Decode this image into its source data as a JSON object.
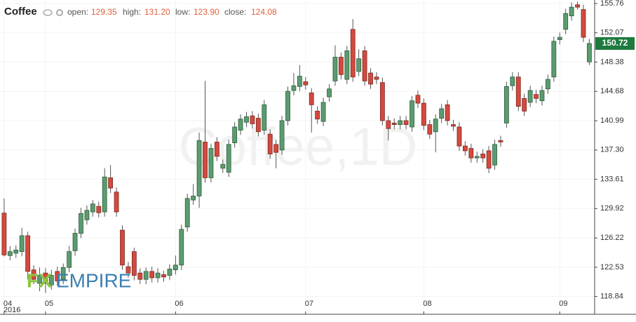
{
  "header": {
    "title": "Coffee",
    "open_label": "open:",
    "open": "129.35",
    "high_label": "high:",
    "high": "131.20",
    "low_label": "low:",
    "low": "123.90",
    "close_label": "close:",
    "close": "124.08"
  },
  "watermark": "Coffee,1D",
  "logo": {
    "fx": "FX",
    "empire": "EMPIRE"
  },
  "chart_data": {
    "type": "candlestick",
    "open": [
      129.35,
      124.0,
      124.3,
      124.5,
      126.5,
      122.2,
      120.5,
      121.8,
      120.3,
      122.0,
      121.0,
      122.5,
      124.6,
      126.8,
      128.5,
      129.5,
      130.2,
      129.5,
      133.8,
      132.0,
      127.2,
      122.6,
      124.5,
      121.8,
      121.0,
      122.0,
      121.2,
      121.6,
      121.5,
      122.2,
      122.8,
      127.6,
      131.0,
      131.5,
      138.3,
      133.8,
      138.3,
      135.0,
      134.5,
      138.2,
      139.8,
      140.8,
      141.6,
      141.3,
      139.8,
      139.3,
      138.0,
      137.3,
      141.0,
      144.8,
      145.3,
      145.9,
      144.5,
      142.2,
      140.9,
      144.0,
      146.0,
      149.0,
      146.2,
      152.5,
      147.2,
      149.8,
      147.0,
      146.5,
      145.8,
      141.0,
      140.7,
      140.5,
      141.0,
      140.2,
      144.2,
      143.2,
      140.5,
      139.6,
      141.3,
      143.0,
      140.5,
      140.2,
      137.8,
      137.5,
      136.3,
      136.8,
      137.2,
      135.4,
      138.5,
      140.7,
      145.4,
      146.5,
      143.8,
      143.3,
      144.3,
      143.5,
      145.0,
      146.5,
      151.2,
      152.5,
      154.2,
      155.6,
      155.0,
      148.4
    ],
    "high": [
      131.2,
      125.2,
      125.3,
      127.5,
      127.0,
      122.8,
      122.5,
      122.4,
      122.2,
      122.6,
      123.0,
      125.2,
      127.4,
      130.0,
      130.3,
      131.0,
      130.8,
      135.0,
      135.4,
      132.6,
      127.8,
      123.2,
      125.0,
      122.4,
      122.5,
      122.6,
      122.4,
      122.1,
      122.9,
      124.0,
      127.9,
      131.8,
      133.0,
      139.5,
      146.0,
      138.1,
      138.9,
      136.1,
      138.6,
      140.8,
      141.8,
      142.1,
      142.2,
      141.9,
      143.6,
      139.9,
      138.6,
      141.6,
      145.3,
      147.0,
      148.0,
      146.5,
      145.1,
      142.8,
      143.9,
      145.6,
      150.5,
      149.6,
      150.4,
      153.8,
      150.0,
      150.4,
      147.6,
      147.1,
      146.4,
      141.6,
      141.3,
      141.6,
      141.6,
      144.1,
      144.8,
      143.8,
      141.1,
      141.8,
      143.1,
      143.6,
      141.1,
      140.8,
      138.4,
      138.1,
      137.1,
      137.4,
      137.8,
      138.6,
      139.1,
      145.9,
      147.1,
      147.1,
      144.4,
      145.4,
      144.9,
      145.4,
      146.8,
      151.6,
      152.1,
      155.1,
      155.9,
      156.0,
      155.6,
      151.3
    ],
    "low": [
      123.9,
      123.4,
      123.7,
      123.9,
      121.0,
      120.4,
      119.5,
      119.3,
      119.7,
      120.2,
      120.4,
      121.9,
      124.0,
      126.2,
      127.9,
      128.9,
      128.8,
      128.9,
      131.9,
      128.9,
      122.2,
      121.2,
      120.9,
      120.4,
      120.4,
      120.6,
      120.6,
      120.7,
      120.9,
      121.6,
      122.2,
      127.0,
      130.4,
      130.0,
      133.2,
      133.2,
      135.9,
      134.4,
      133.9,
      137.6,
      139.2,
      140.2,
      140.0,
      139.0,
      139.2,
      136.2,
      135.0,
      136.7,
      140.4,
      144.2,
      144.7,
      144.9,
      139.5,
      140.6,
      140.3,
      143.4,
      145.4,
      146.2,
      145.6,
      145.9,
      146.6,
      145.4,
      145.0,
      145.6,
      140.4,
      138.5,
      139.9,
      139.9,
      139.9,
      139.6,
      142.6,
      139.8,
      138.7,
      137.0,
      140.7,
      140.4,
      139.7,
      137.2,
      136.6,
      135.7,
      135.7,
      135.7,
      134.4,
      134.8,
      137.7,
      140.1,
      144.8,
      142.2,
      141.6,
      142.7,
      143.2,
      142.9,
      144.4,
      145.9,
      150.6,
      151.9,
      153.6,
      155.0,
      150.9,
      148.0
    ],
    "close": [
      124.08,
      124.5,
      124.7,
      126.5,
      122.0,
      121.0,
      121.5,
      120.5,
      121.5,
      120.8,
      122.5,
      124.5,
      126.8,
      129.3,
      129.7,
      130.5,
      129.4,
      133.9,
      132.5,
      129.5,
      122.8,
      121.8,
      121.5,
      121.0,
      122.0,
      121.2,
      121.8,
      121.3,
      122.3,
      122.8,
      127.3,
      131.2,
      131.5,
      138.5,
      133.8,
      137.5,
      136.5,
      135.5,
      138.0,
      140.2,
      141.2,
      141.5,
      140.6,
      139.6,
      143.0,
      136.8,
      137.0,
      141.0,
      144.7,
      145.4,
      146.6,
      145.5,
      143.0,
      141.2,
      143.3,
      145.0,
      149.0,
      146.8,
      149.8,
      146.5,
      148.8,
      146.0,
      145.6,
      146.2,
      141.0,
      140.0,
      140.5,
      141.0,
      140.5,
      143.5,
      143.2,
      140.4,
      139.3,
      141.2,
      142.5,
      141.0,
      140.3,
      137.8,
      137.2,
      136.3,
      136.5,
      136.3,
      135.0,
      138.0,
      138.3,
      145.3,
      146.5,
      142.8,
      142.2,
      144.8,
      143.8,
      144.8,
      146.2,
      151.0,
      151.5,
      154.5,
      155.3,
      155.3,
      151.5,
      150.72
    ],
    "up_color": "#5b9c6e",
    "down_color": "#d4493e",
    "xlim": [
      -0.7,
      99.9
    ],
    "xticks": [
      {
        "value": 0,
        "label": "04"
      },
      {
        "value": 7,
        "label": "05"
      },
      {
        "value": 29,
        "label": "06"
      },
      {
        "value": 51,
        "label": "07"
      },
      {
        "value": 71,
        "label": "08"
      },
      {
        "value": 94,
        "label": "09"
      }
    ],
    "year_label": "2016",
    "ylim": [
      116.6,
      156.2
    ],
    "yticks": [
      155.76,
      152.07,
      148.38,
      144.68,
      140.99,
      {
        "value": 137.3,
        "label": "137.30"
      },
      133.61,
      129.92,
      126.22,
      122.53,
      118.84
    ],
    "grid": true
  }
}
